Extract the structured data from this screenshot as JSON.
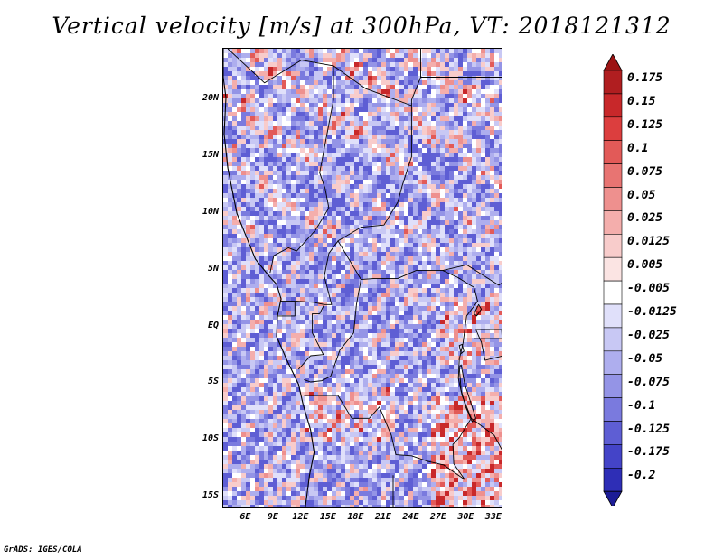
{
  "title": "Vertical velocity [m/s] at 300hPa, VT: 2018121312",
  "footer": "GrADS: IGES/COLA",
  "map": {
    "variable": "Vertical velocity",
    "units": "m/s",
    "level": "300hPa",
    "valid_time": "2018121312",
    "lon_range": [
      3.5,
      34
    ],
    "lat_range": [
      -16,
      24.5
    ],
    "lat_ticks": [
      {
        "value": 20,
        "label": "20N"
      },
      {
        "value": 15,
        "label": "15N"
      },
      {
        "value": 10,
        "label": "10N"
      },
      {
        "value": 5,
        "label": "5N"
      },
      {
        "value": 0,
        "label": "EQ"
      },
      {
        "value": -5,
        "label": "5S"
      },
      {
        "value": -10,
        "label": "10S"
      },
      {
        "value": -15,
        "label": "15S"
      }
    ],
    "lon_ticks": [
      {
        "value": 6,
        "label": "6E"
      },
      {
        "value": 9,
        "label": "9E"
      },
      {
        "value": 12,
        "label": "12E"
      },
      {
        "value": 15,
        "label": "15E"
      },
      {
        "value": 18,
        "label": "18E"
      },
      {
        "value": 21,
        "label": "21E"
      },
      {
        "value": 24,
        "label": "24E"
      },
      {
        "value": 27,
        "label": "27E"
      },
      {
        "value": 30,
        "label": "30E"
      },
      {
        "value": 33,
        "label": "33E"
      }
    ]
  },
  "colorbar": {
    "levels": [
      {
        "label": "0.175",
        "color": "#b01e20"
      },
      {
        "label": "0.15",
        "color": "#c8282a"
      },
      {
        "label": "0.125",
        "color": "#dc3e3e"
      },
      {
        "label": "0.1",
        "color": "#e25a58"
      },
      {
        "label": "0.075",
        "color": "#e87472"
      },
      {
        "label": "0.05",
        "color": "#ee908e"
      },
      {
        "label": "0.025",
        "color": "#f4aeac"
      },
      {
        "label": "0.0125",
        "color": "#f8cccb"
      },
      {
        "label": "0.005",
        "color": "#fbe4e3"
      },
      {
        "label": "-0.005",
        "color": "#ffffff"
      },
      {
        "label": "-0.0125",
        "color": "#e0e0fa"
      },
      {
        "label": "-0.025",
        "color": "#c8c8f4"
      },
      {
        "label": "-0.05",
        "color": "#aeaeee"
      },
      {
        "label": "-0.075",
        "color": "#9494e6"
      },
      {
        "label": "-0.1",
        "color": "#7a7ade"
      },
      {
        "label": "-0.125",
        "color": "#5e5ed4"
      },
      {
        "label": "-0.175",
        "color": "#4444c8"
      },
      {
        "label": "-0.2",
        "color": "#2e2eb6"
      }
    ],
    "top_arrow_color": "#9c1414",
    "bottom_arrow_color": "#1c1c96"
  }
}
